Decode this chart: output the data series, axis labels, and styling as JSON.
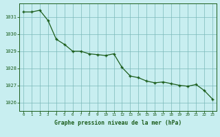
{
  "x": [
    0,
    1,
    2,
    3,
    4,
    5,
    6,
    7,
    8,
    9,
    10,
    11,
    12,
    13,
    14,
    15,
    16,
    17,
    18,
    19,
    20,
    21,
    22,
    23
  ],
  "y": [
    1031.3,
    1031.3,
    1031.4,
    1030.8,
    1029.7,
    1029.4,
    1029.0,
    1029.0,
    1028.85,
    1028.8,
    1028.75,
    1028.85,
    1028.05,
    1027.55,
    1027.45,
    1027.25,
    1027.15,
    1027.2,
    1027.1,
    1027.0,
    1026.95,
    1027.05,
    1026.7,
    1026.2
  ],
  "line_color": "#1a5c1a",
  "marker": "+",
  "bg_color": "#c8eef0",
  "grid_color": "#7ab8b8",
  "xlabel": "Graphe pression niveau de la mer (hPa)",
  "xlabel_color": "#1a5c1a",
  "tick_color": "#1a5c1a",
  "spine_color": "#1a5c1a",
  "ylim": [
    1025.5,
    1031.8
  ],
  "xlim": [
    -0.5,
    23.5
  ],
  "yticks": [
    1026,
    1027,
    1028,
    1029,
    1030,
    1031
  ],
  "xticks": [
    0,
    1,
    2,
    3,
    4,
    5,
    6,
    7,
    8,
    9,
    10,
    11,
    12,
    13,
    14,
    15,
    16,
    17,
    18,
    19,
    20,
    21,
    22,
    23
  ],
  "figsize": [
    3.2,
    2.0
  ],
  "dpi": 100
}
